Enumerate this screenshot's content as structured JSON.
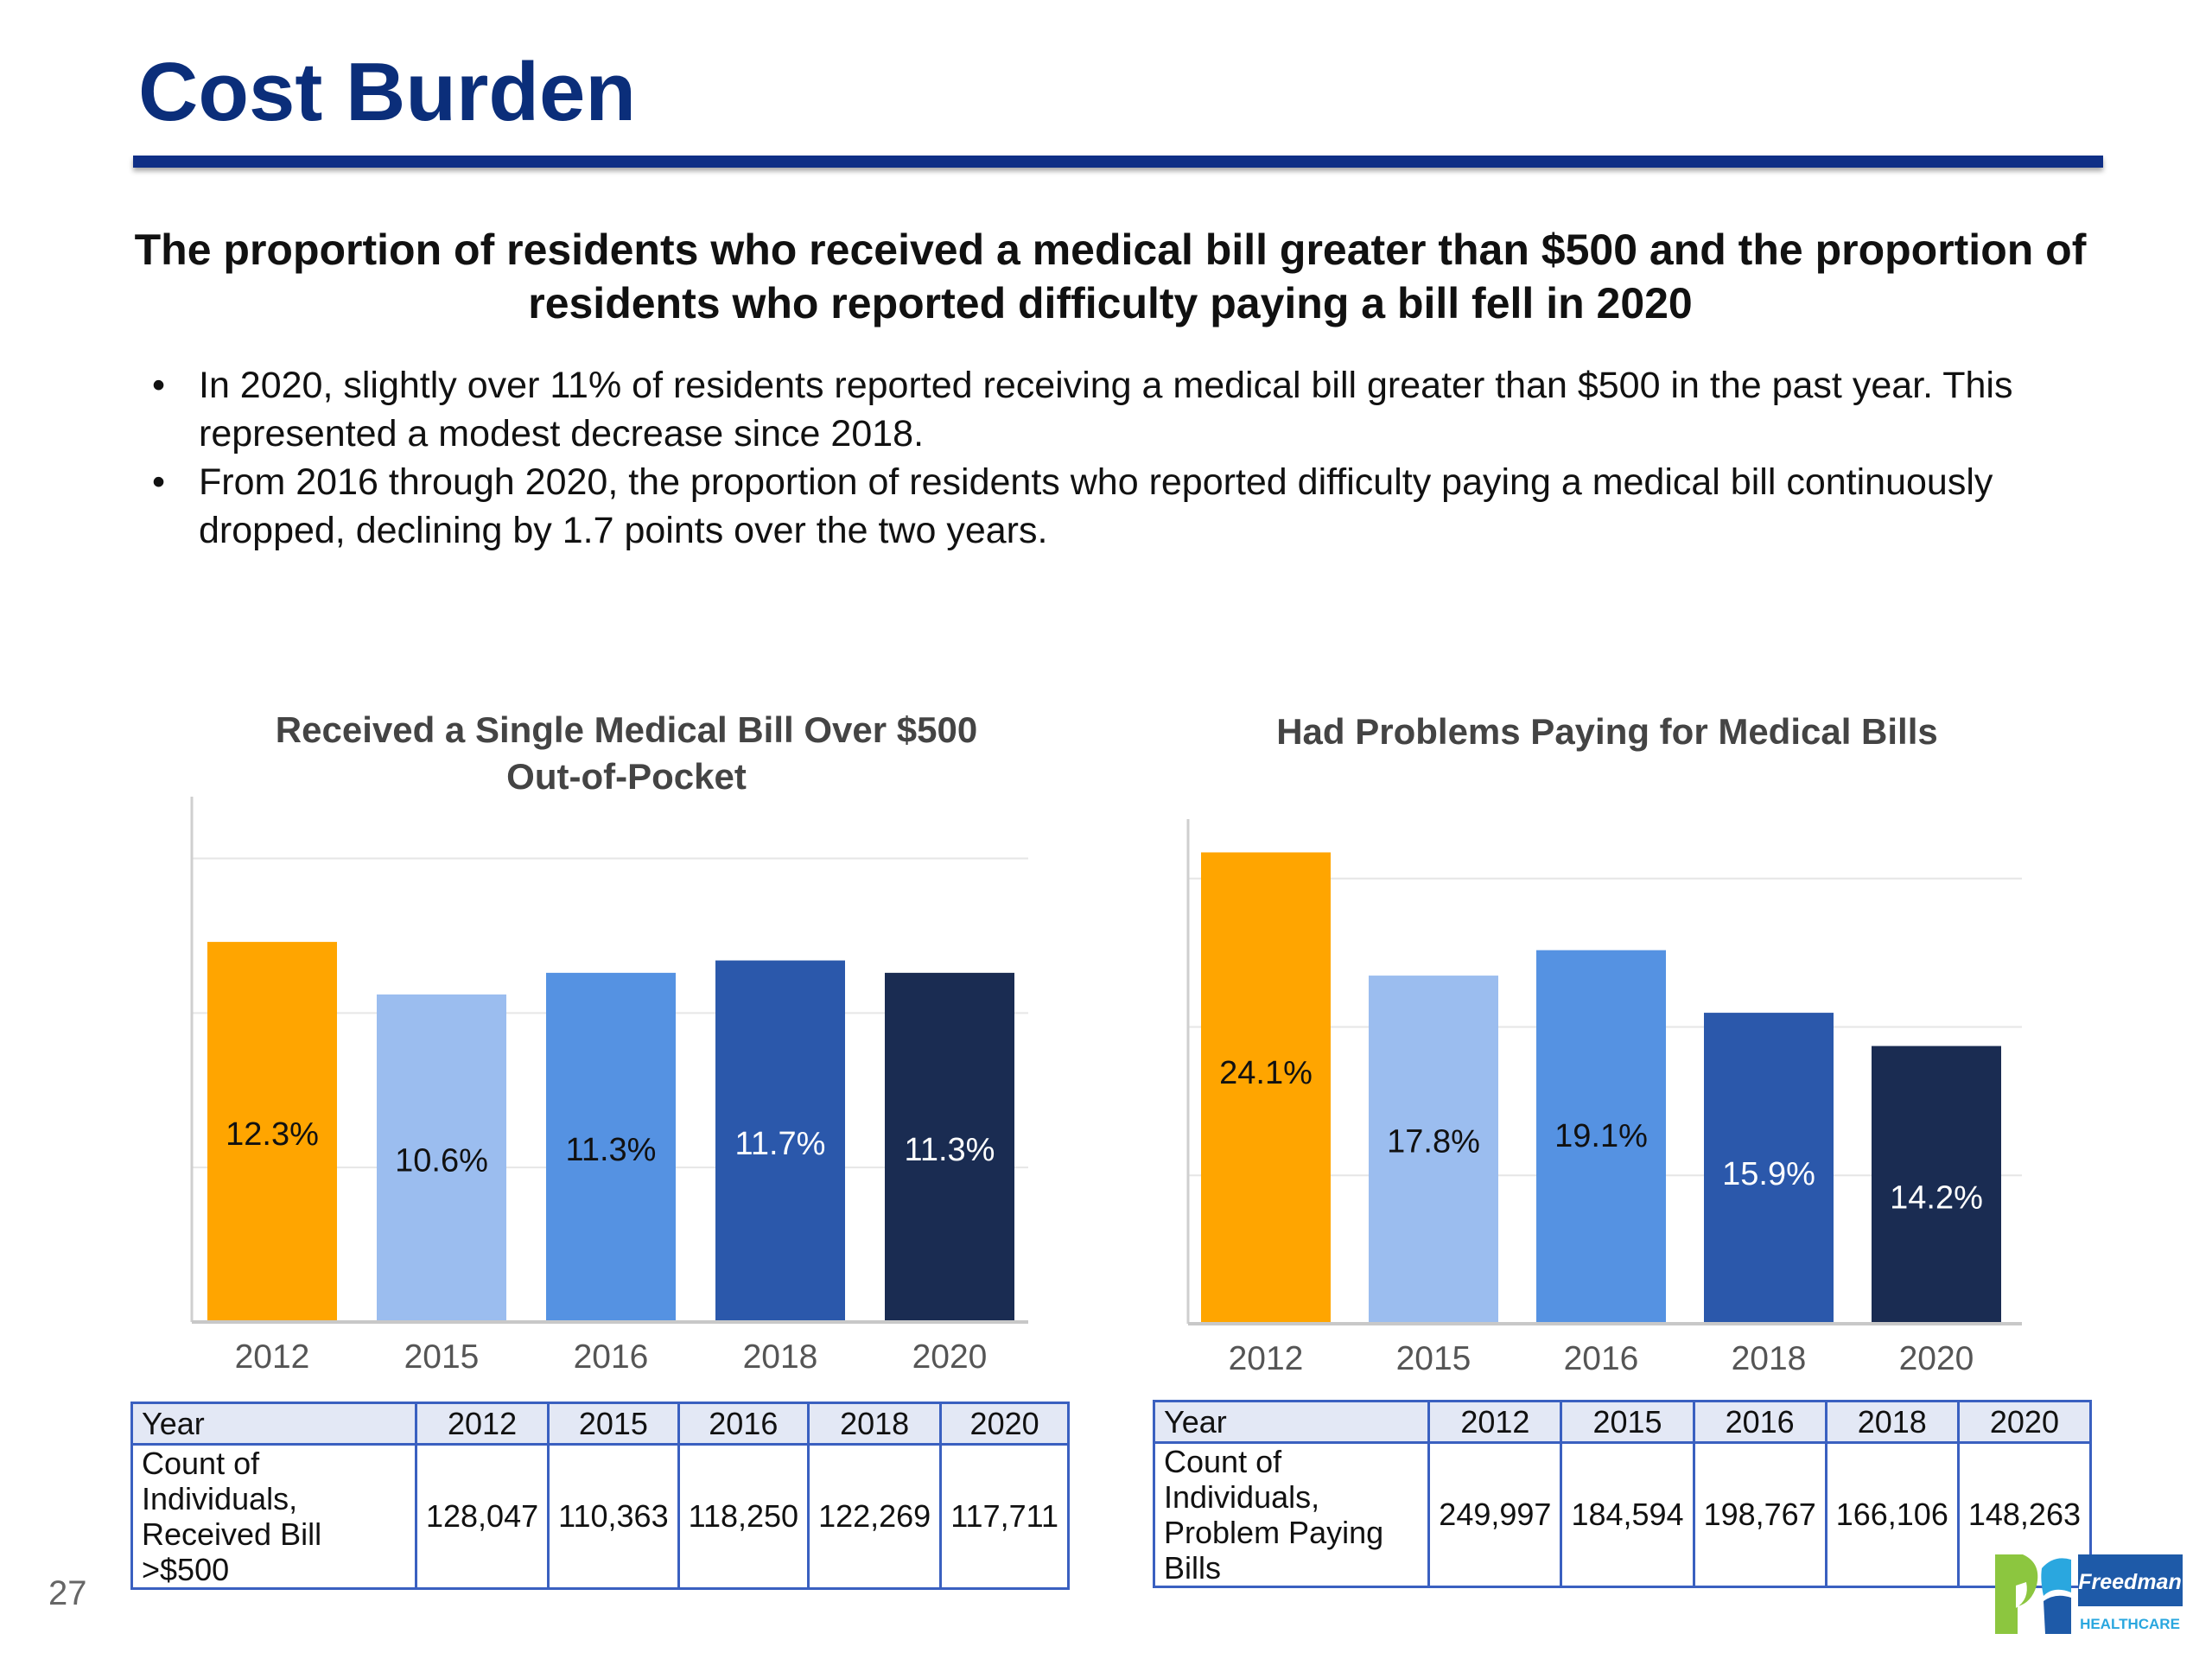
{
  "page": {
    "title": "Cost Burden",
    "headline": "The proportion of residents who received a medical bill greater than $500 and the proportion of residents who reported difficulty paying a bill fell in 2020",
    "bullets": [
      "In 2020, slightly over 11% of residents reported receiving a medical bill greater than $500 in the past year. This represented a modest decrease since 2018.",
      "From 2016 through 2020, the proportion of residents who reported difficulty paying a medical bill continuously dropped, declining by 1.7 points over the two years."
    ],
    "page_number": "27",
    "logo": {
      "brand": "Freedman",
      "sub": "HEALTHCARE",
      "icon": "freedman-healthcare-logo"
    }
  },
  "chart_data": [
    {
      "type": "bar",
      "title": "Received a Single Medical Bill Over $500 Out-of-Pocket",
      "categories": [
        "2012",
        "2015",
        "2016",
        "2018",
        "2020"
      ],
      "values": [
        12.3,
        10.6,
        11.3,
        11.7,
        11.3
      ],
      "labels": [
        "12.3%",
        "10.6%",
        "11.3%",
        "11.7%",
        "11.3%"
      ],
      "ylim": [
        0,
        17
      ],
      "grid": true,
      "colors": [
        "#ffa500",
        "#9bbdef",
        "#5592e2",
        "#2b58ab",
        "#1a2c52"
      ],
      "label_colors": [
        "#111111",
        "#111111",
        "#111111",
        "#ffffff",
        "#ffffff"
      ]
    },
    {
      "type": "bar",
      "title": "Had Problems Paying for Medical Bills",
      "categories": [
        "2012",
        "2015",
        "2016",
        "2018",
        "2020"
      ],
      "values": [
        24.1,
        17.8,
        19.1,
        15.9,
        14.2
      ],
      "labels": [
        "24.1%",
        "17.8%",
        "19.1%",
        "15.9%",
        "14.2%"
      ],
      "ylim": [
        0,
        25.8
      ],
      "grid": true,
      "colors": [
        "#ffa500",
        "#9bbdef",
        "#5592e2",
        "#2b58ab",
        "#1a2c52"
      ],
      "label_colors": [
        "#111111",
        "#111111",
        "#111111",
        "#ffffff",
        "#ffffff"
      ]
    }
  ],
  "tables": [
    {
      "header_label": "Year",
      "years": [
        "2012",
        "2015",
        "2016",
        "2018",
        "2020"
      ],
      "row_label_line1": "Count of Individuals,",
      "row_label_line2": "Received Bill >$500",
      "counts": [
        "128,047",
        "110,363",
        "118,250",
        "122,269",
        "117,711"
      ]
    },
    {
      "header_label": "Year",
      "years": [
        "2012",
        "2015",
        "2016",
        "2018",
        "2020"
      ],
      "row_label_line1": "Count of Individuals,",
      "row_label_line2": "Problem Paying Bills",
      "counts": [
        "249,997",
        "184,594",
        "198,767",
        "166,106",
        "148,263"
      ]
    }
  ]
}
